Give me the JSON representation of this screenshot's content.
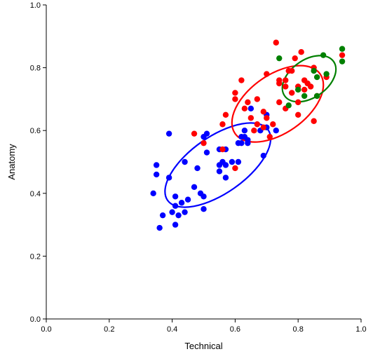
{
  "chart_data": {
    "type": "scatter",
    "xlabel": "Technical",
    "ylabel": "Anatomy",
    "xlim": [
      0,
      1
    ],
    "ylim": [
      0,
      1
    ],
    "x_ticks": [
      "0.0",
      "0.2",
      "0.4",
      "0.6",
      "0.8",
      "1.0"
    ],
    "y_ticks": [
      "0.0",
      "0.2",
      "0.4",
      "0.6",
      "0.8",
      "1.0"
    ],
    "grid": false,
    "legend": "none",
    "series": [
      {
        "color": "#0000ff",
        "points": [
          [
            0.39,
            0.59
          ],
          [
            0.5,
            0.58
          ],
          [
            0.51,
            0.59
          ],
          [
            0.51,
            0.53
          ],
          [
            0.55,
            0.54
          ],
          [
            0.57,
            0.54
          ],
          [
            0.56,
            0.5
          ],
          [
            0.57,
            0.49
          ],
          [
            0.55,
            0.47
          ],
          [
            0.57,
            0.45
          ],
          [
            0.59,
            0.5
          ],
          [
            0.61,
            0.5
          ],
          [
            0.61,
            0.56
          ],
          [
            0.62,
            0.56
          ],
          [
            0.63,
            0.58
          ],
          [
            0.64,
            0.56
          ],
          [
            0.64,
            0.57
          ],
          [
            0.62,
            0.58
          ],
          [
            0.63,
            0.6
          ],
          [
            0.65,
            0.67
          ],
          [
            0.68,
            0.6
          ],
          [
            0.7,
            0.61
          ],
          [
            0.7,
            0.65
          ],
          [
            0.73,
            0.6
          ],
          [
            0.69,
            0.52
          ],
          [
            0.35,
            0.49
          ],
          [
            0.35,
            0.46
          ],
          [
            0.39,
            0.45
          ],
          [
            0.44,
            0.5
          ],
          [
            0.48,
            0.48
          ],
          [
            0.47,
            0.42
          ],
          [
            0.49,
            0.4
          ],
          [
            0.5,
            0.39
          ],
          [
            0.45,
            0.38
          ],
          [
            0.41,
            0.39
          ],
          [
            0.34,
            0.4
          ],
          [
            0.43,
            0.37
          ],
          [
            0.44,
            0.34
          ],
          [
            0.5,
            0.35
          ],
          [
            0.41,
            0.36
          ],
          [
            0.4,
            0.34
          ],
          [
            0.42,
            0.33
          ],
          [
            0.37,
            0.33
          ],
          [
            0.41,
            0.3
          ],
          [
            0.36,
            0.29
          ],
          [
            0.55,
            0.49
          ]
        ],
        "ellipse": {
          "cx": 0.545,
          "cy": 0.49,
          "rx": 0.195,
          "ry": 0.09,
          "angle_deg": 35
        }
      },
      {
        "color": "#ff0000",
        "points": [
          [
            0.47,
            0.59
          ],
          [
            0.5,
            0.56
          ],
          [
            0.56,
            0.54
          ],
          [
            0.56,
            0.62
          ],
          [
            0.57,
            0.65
          ],
          [
            0.6,
            0.48
          ],
          [
            0.6,
            0.7
          ],
          [
            0.6,
            0.72
          ],
          [
            0.62,
            0.76
          ],
          [
            0.63,
            0.67
          ],
          [
            0.64,
            0.69
          ],
          [
            0.65,
            0.64
          ],
          [
            0.66,
            0.6
          ],
          [
            0.67,
            0.62
          ],
          [
            0.67,
            0.7
          ],
          [
            0.69,
            0.66
          ],
          [
            0.7,
            0.64
          ],
          [
            0.7,
            0.78
          ],
          [
            0.72,
            0.62
          ],
          [
            0.73,
            0.88
          ],
          [
            0.74,
            0.75
          ],
          [
            0.74,
            0.76
          ],
          [
            0.74,
            0.69
          ],
          [
            0.76,
            0.76
          ],
          [
            0.76,
            0.74
          ],
          [
            0.76,
            0.67
          ],
          [
            0.77,
            0.79
          ],
          [
            0.78,
            0.79
          ],
          [
            0.78,
            0.72
          ],
          [
            0.79,
            0.83
          ],
          [
            0.8,
            0.65
          ],
          [
            0.8,
            0.69
          ],
          [
            0.8,
            0.74
          ],
          [
            0.81,
            0.85
          ],
          [
            0.82,
            0.76
          ],
          [
            0.82,
            0.73
          ],
          [
            0.83,
            0.75
          ],
          [
            0.84,
            0.74
          ],
          [
            0.85,
            0.8
          ],
          [
            0.85,
            0.63
          ],
          [
            0.86,
            0.71
          ],
          [
            0.89,
            0.77
          ],
          [
            0.94,
            0.84
          ],
          [
            0.69,
            0.61
          ],
          [
            0.71,
            0.58
          ]
        ],
        "ellipse": {
          "cx": 0.735,
          "cy": 0.685,
          "rx": 0.165,
          "ry": 0.093,
          "angle_deg": 35
        }
      },
      {
        "color": "#008000",
        "points": [
          [
            0.74,
            0.83
          ],
          [
            0.77,
            0.68
          ],
          [
            0.82,
            0.71
          ],
          [
            0.85,
            0.79
          ],
          [
            0.86,
            0.71
          ],
          [
            0.86,
            0.77
          ],
          [
            0.88,
            0.84
          ],
          [
            0.89,
            0.78
          ],
          [
            0.94,
            0.86
          ],
          [
            0.94,
            0.82
          ],
          [
            0.8,
            0.73
          ]
        ],
        "ellipse": {
          "cx": 0.835,
          "cy": 0.765,
          "rx": 0.095,
          "ry": 0.06,
          "angle_deg": 35
        }
      }
    ]
  }
}
